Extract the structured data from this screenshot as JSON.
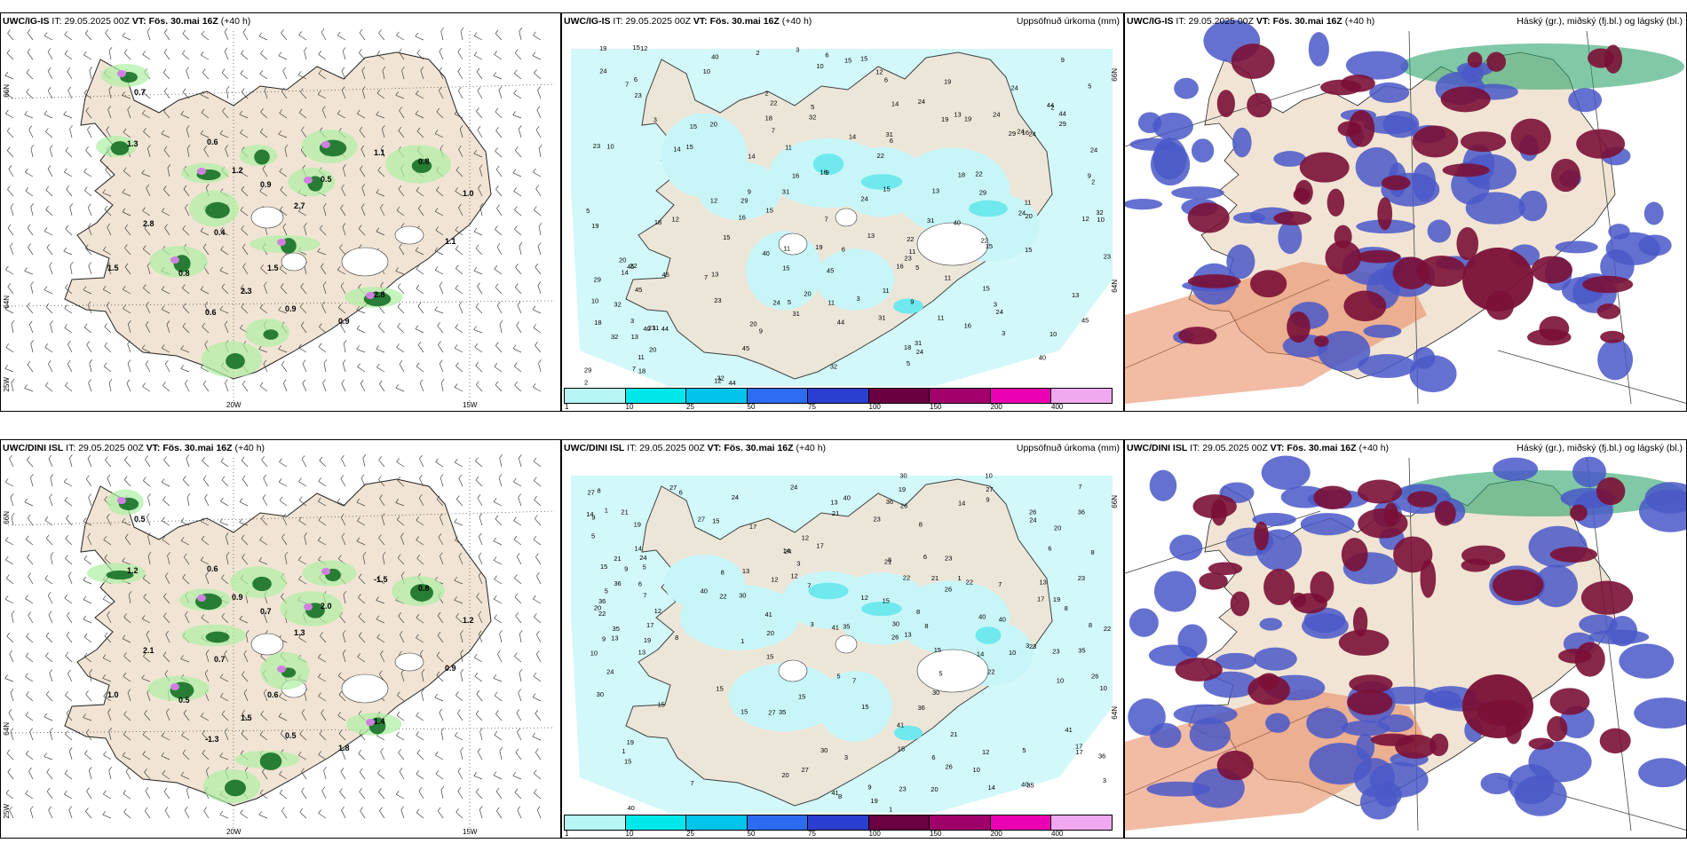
{
  "rows": [
    {
      "model": "UWC/IG-IS",
      "it_label": "IT:",
      "it_value": "29.05.2025 00Z",
      "vt_label": "VT:",
      "vt_value": "Fös. 30.mai 16Z",
      "lead": "(+40 h)",
      "precip_title": "Uppsöfnuð úrkoma (mm)",
      "cloud_title": "Háský (gr.), miðský (fj.bl.) og lágský (bl.)",
      "wind_values": [
        "0.7",
        "1.3",
        "0.6",
        "1.2",
        "0.9",
        "2.7",
        "0.5",
        "1.1",
        "0.8",
        "1.0",
        "2.8",
        "0.4",
        "1.5",
        "2.3",
        "0.9",
        "2.8",
        "0.8",
        "1.5",
        "0.6",
        "0.9",
        "1.1"
      ],
      "precip_values": [
        "3",
        "5",
        "9",
        "12",
        "20",
        "24",
        "15",
        "18",
        "22",
        "31",
        "29",
        "16",
        "19",
        "10",
        "23",
        "32",
        "15",
        "24",
        "13",
        "45",
        "44",
        "40",
        "11",
        "14",
        "6",
        "2",
        "7",
        "11"
      ]
    },
    {
      "model": "UWC/DINI ISL",
      "it_label": "IT:",
      "it_value": "29.05.2025 00Z",
      "vt_label": "VT:",
      "vt_value": "Fös. 30.mai 16Z",
      "lead": "(+40 h)",
      "precip_title": "Uppsöfnuð úrkoma (mm)",
      "cloud_title": "Háský (gr.), miðský (fj.bl.) og lágský (bl.)",
      "wind_values": [
        "0.5",
        "1.2",
        "0.6",
        "0.9",
        "0.7",
        "1.3",
        "2.0",
        "-1.5",
        "0.8",
        "1.2",
        "2.1",
        "0.7",
        "0.6",
        "1.5",
        "0.5",
        "1.4",
        "0.5",
        "1.0",
        "-1.3",
        "1.8",
        "0.9"
      ],
      "precip_values": [
        "10",
        "5",
        "7",
        "8",
        "12",
        "17",
        "22",
        "30",
        "23",
        "26",
        "15",
        "14",
        "19",
        "21",
        "40",
        "36",
        "13",
        "27",
        "24",
        "15",
        "41",
        "35",
        "6",
        "8",
        "1",
        "3",
        "20",
        "9"
      ]
    }
  ],
  "axis_labels": {
    "lat_66": "66N",
    "lat_64": "64N",
    "lon_25w": "25W",
    "lon_20w": "20W",
    "lon_15w": "15W"
  },
  "colorbar": {
    "ticks": [
      "1",
      "10",
      "25",
      "50",
      "75",
      "100",
      "150",
      "200",
      "400"
    ],
    "colors": [
      "#b6f7f5",
      "#00e8ea",
      "#00c4ea",
      "#2c6cf0",
      "#2a3fd0",
      "#6a0040",
      "#a0006a",
      "#ea00b0",
      "#f0a8f0"
    ]
  },
  "colors": {
    "land": "#f1e4d4",
    "precip_light": "#c8f6f8",
    "precip_mid": "#6fe9ee",
    "green_light": "#aef0a4",
    "green_dark": "#0d6a1e",
    "purple": "#d080e0",
    "cloud_high": "#7a1036",
    "cloud_mid": "#4a58c8",
    "cloud_low": "#2da36a",
    "cloud_orange": "#e8845a"
  }
}
